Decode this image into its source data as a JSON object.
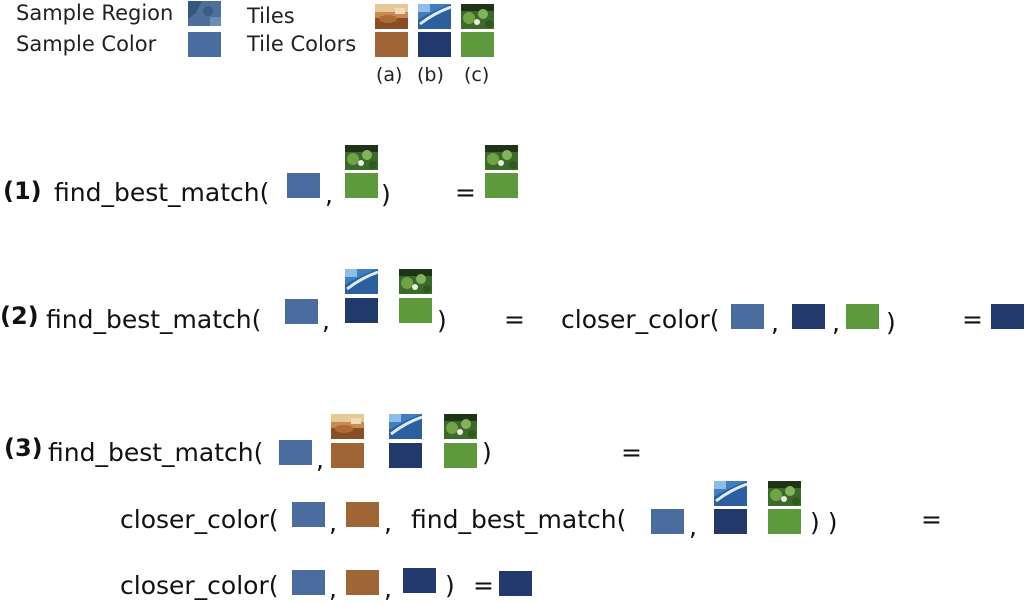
{
  "colors": {
    "sample": "#4a6c9f",
    "tile_a": "#9f6535",
    "tile_b": "#213a6b",
    "tile_c": "#5e9a3d"
  },
  "legend": {
    "sample_region": "Sample Region",
    "sample_color": "Sample Color",
    "tiles": "Tiles",
    "tile_colors": "Tile Colors",
    "labels": [
      "(a)",
      "(b)",
      "(c)"
    ]
  },
  "text": {
    "find_best_match": "find_best_match(",
    "closer_color": "closer_color(",
    "comma": ",",
    "close_paren": ")",
    "close_parens_2": ") )",
    "equals": "=",
    "step1": "(1)",
    "step2": "(2)",
    "step3": "(3)"
  }
}
